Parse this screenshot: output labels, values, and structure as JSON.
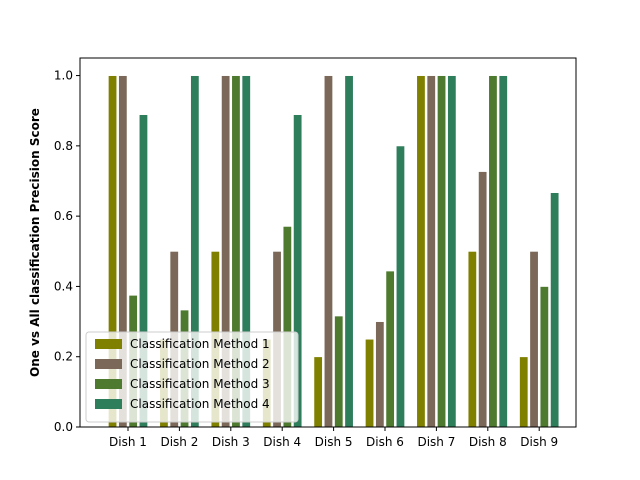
{
  "chart_data": {
    "type": "bar",
    "title": "",
    "xlabel": "",
    "ylabel": "One vs All classification Precision Score",
    "ylim": [
      0,
      1.05
    ],
    "yticks": [
      "0.0",
      "0.2",
      "0.4",
      "0.6",
      "0.8",
      "1.0"
    ],
    "ytick_values": [
      0,
      0.2,
      0.4,
      0.6,
      0.8,
      1.0
    ],
    "categories": [
      "Dish 1",
      "Dish 2",
      "Dish 3",
      "Dish 4",
      "Dish 5",
      "Dish 6",
      "Dish 7",
      "Dish 8",
      "Dish 9"
    ],
    "legend_position": "lower-left",
    "grid": false,
    "series": [
      {
        "name": "Classification Method 1",
        "color": "#808000",
        "values": [
          1.0,
          0.25,
          0.5,
          0.25,
          0.2,
          0.25,
          1.0,
          0.5,
          0.2
        ]
      },
      {
        "name": "Classification Method 2",
        "color": "#7b6858",
        "values": [
          1.0,
          0.5,
          1.0,
          0.5,
          1.0,
          0.3,
          1.0,
          0.727,
          0.5
        ]
      },
      {
        "name": "Classification Method 3",
        "color": "#4d7a2e",
        "values": [
          0.375,
          0.333,
          1.0,
          0.571,
          0.316,
          0.444,
          1.0,
          1.0,
          0.4
        ]
      },
      {
        "name": "Classification Method 4",
        "color": "#2e7d5b",
        "values": [
          0.889,
          1.0,
          1.0,
          0.889,
          1.0,
          0.8,
          1.0,
          1.0,
          0.667
        ]
      }
    ]
  }
}
